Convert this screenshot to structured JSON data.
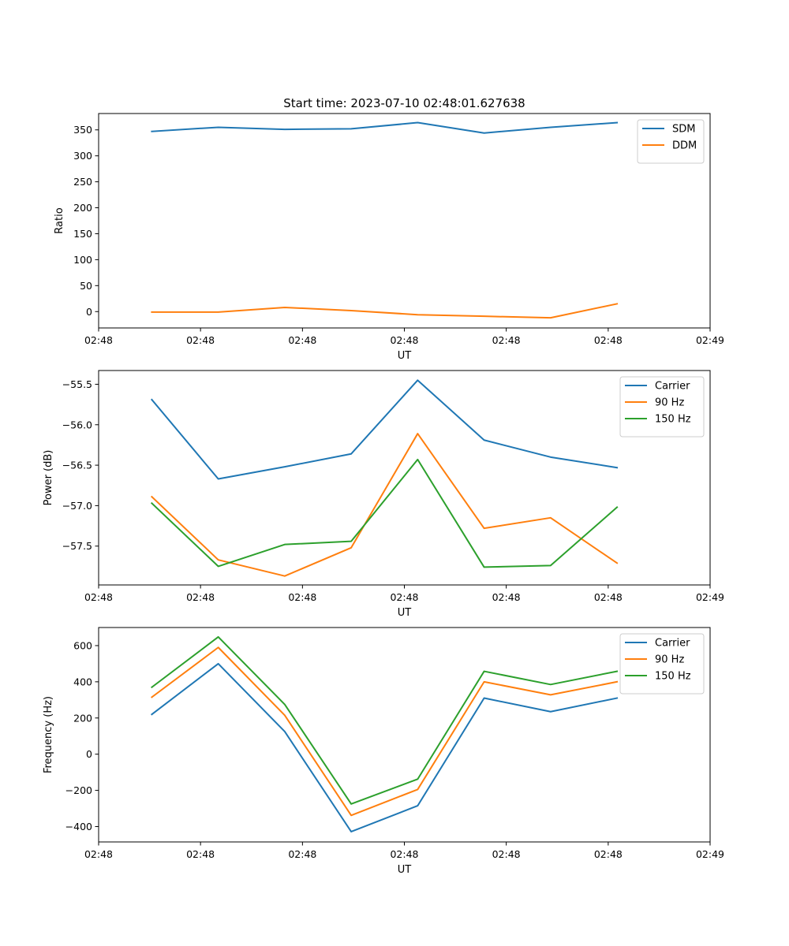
{
  "title": "Start time: 2023-07-10 02:48:01.627638",
  "colors": {
    "blue": "#1f77b4",
    "orange": "#ff7f0e",
    "green": "#2ca02c"
  },
  "chart_data": [
    {
      "type": "line",
      "xlabel": "UT",
      "ylabel": "Ratio",
      "x": [
        1,
        2,
        3,
        4,
        5,
        6,
        7,
        8
      ],
      "xlim": [
        0.2,
        9.4
      ],
      "xticks": [
        0.2,
        1.733,
        3.267,
        4.8,
        6.333,
        7.867,
        9.4
      ],
      "xtick_labels": [
        "02:48",
        "02:48",
        "02:48",
        "02:48",
        "02:48",
        "02:48",
        "02:49"
      ],
      "ylim": [
        -31.5,
        381.5
      ],
      "yticks": [
        0,
        50,
        100,
        150,
        200,
        250,
        300,
        350
      ],
      "ytick_labels": [
        "0",
        "50",
        "100",
        "150",
        "200",
        "250",
        "300",
        "350"
      ],
      "legend": "top-right",
      "series": [
        {
          "name": "SDM",
          "color": "blue",
          "values": [
            347,
            355,
            351,
            352,
            364,
            344,
            355,
            364
          ]
        },
        {
          "name": "DDM",
          "color": "orange",
          "values": [
            -1,
            -1,
            8,
            2,
            -6,
            -9,
            -12,
            15
          ]
        }
      ]
    },
    {
      "type": "line",
      "xlabel": "UT",
      "ylabel": "Power (dB)",
      "x": [
        1,
        2,
        3,
        4,
        5,
        6,
        7,
        8
      ],
      "xlim": [
        0.2,
        9.4
      ],
      "xticks": [
        0.2,
        1.733,
        3.267,
        4.8,
        6.333,
        7.867,
        9.4
      ],
      "xtick_labels": [
        "02:48",
        "02:48",
        "02:48",
        "02:48",
        "02:48",
        "02:48",
        "02:49"
      ],
      "ylim": [
        -57.98,
        -55.33
      ],
      "yticks": [
        -57.5,
        -57.0,
        -56.5,
        -56.0,
        -55.5
      ],
      "ytick_labels": [
        "−57.5",
        "−57.0",
        "−56.5",
        "−56.0",
        "−55.5"
      ],
      "legend": "top-right",
      "series": [
        {
          "name": "Carrier",
          "color": "blue",
          "values": [
            -55.69,
            -56.67,
            -56.52,
            -56.36,
            -55.45,
            -56.19,
            -56.4,
            -56.53
          ]
        },
        {
          "name": "90 Hz",
          "color": "orange",
          "values": [
            -56.89,
            -57.67,
            -57.87,
            -57.52,
            -56.11,
            -57.28,
            -57.15,
            -57.71
          ]
        },
        {
          "name": "150 Hz",
          "color": "green",
          "values": [
            -56.97,
            -57.75,
            -57.48,
            -57.44,
            -56.43,
            -57.76,
            -57.74,
            -57.02
          ]
        }
      ]
    },
    {
      "type": "line",
      "xlabel": "UT",
      "ylabel": "Frequency (Hz)",
      "x": [
        1,
        2,
        3,
        4,
        5,
        6,
        7,
        8
      ],
      "xlim": [
        0.2,
        9.4
      ],
      "xticks": [
        0.2,
        1.733,
        3.267,
        4.8,
        6.333,
        7.867,
        9.4
      ],
      "xtick_labels": [
        "02:48",
        "02:48",
        "02:48",
        "02:48",
        "02:48",
        "02:48",
        "02:49"
      ],
      "ylim": [
        -485,
        700
      ],
      "yticks": [
        -400,
        -200,
        0,
        200,
        400,
        600
      ],
      "ytick_labels": [
        "−400",
        "−200",
        "0",
        "200",
        "400",
        "600"
      ],
      "legend": "top-right",
      "series": [
        {
          "name": "Carrier",
          "color": "blue",
          "values": [
            220,
            500,
            125,
            -428,
            -285,
            310,
            235,
            310
          ]
        },
        {
          "name": "90 Hz",
          "color": "orange",
          "values": [
            315,
            590,
            215,
            -338,
            -195,
            400,
            328,
            400
          ]
        },
        {
          "name": "150 Hz",
          "color": "green",
          "values": [
            370,
            648,
            275,
            -275,
            -138,
            458,
            385,
            458
          ]
        }
      ]
    }
  ]
}
